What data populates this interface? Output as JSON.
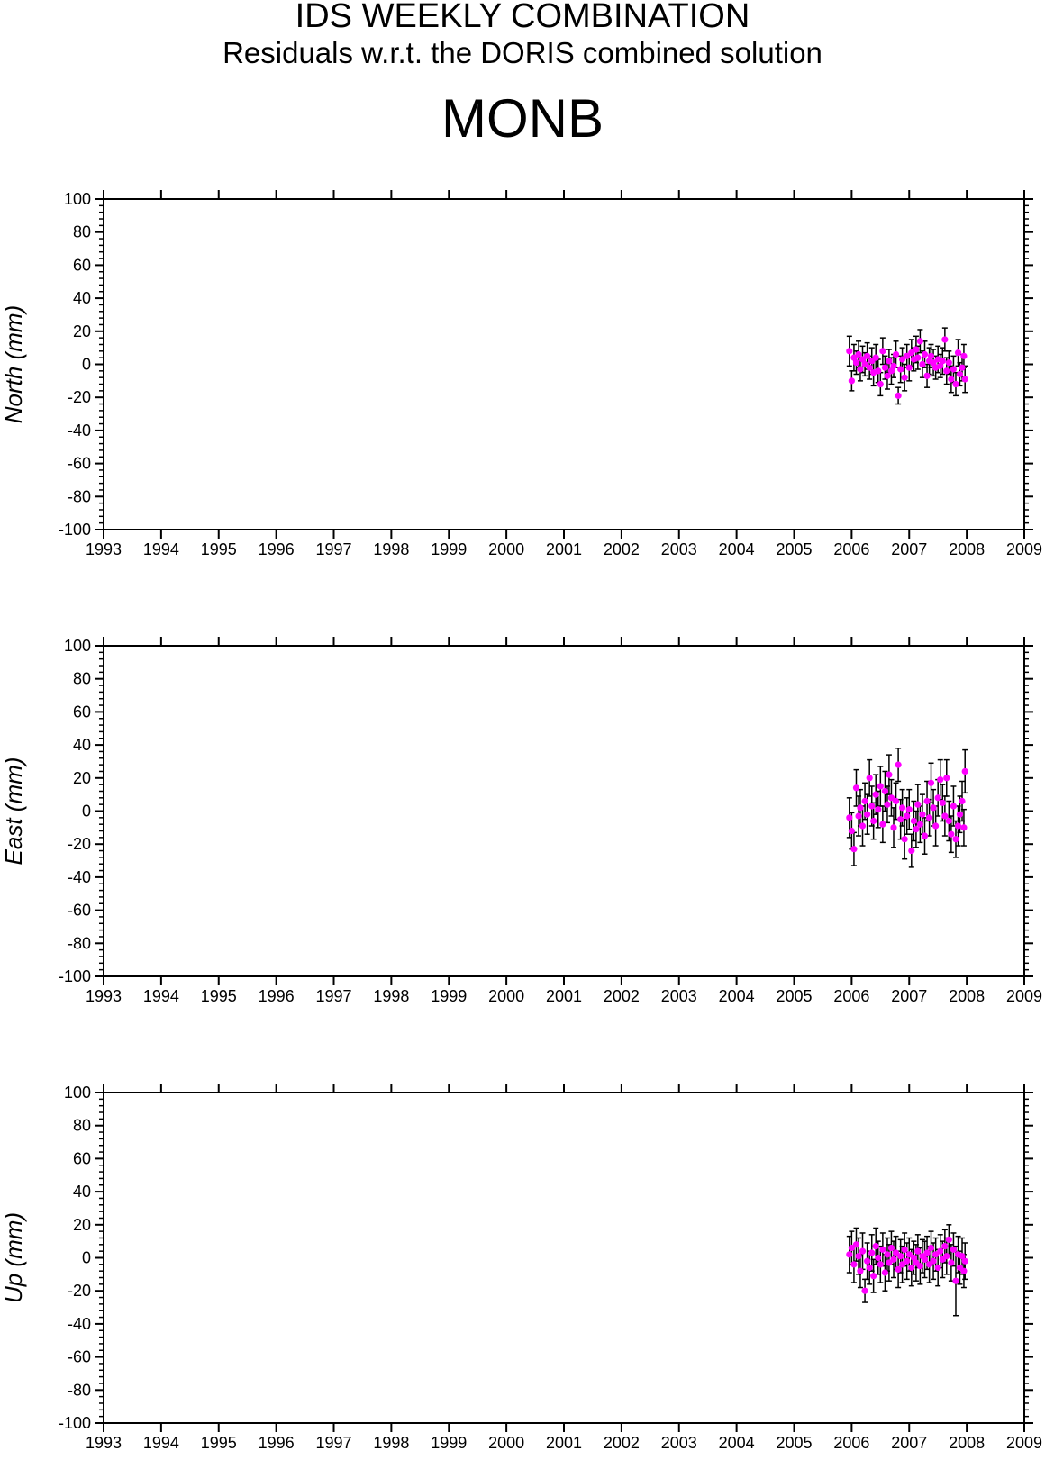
{
  "header": {
    "title": "IDS WEEKLY COMBINATION",
    "subtitle": "Residuals w.r.t. the DORIS combined solution",
    "station": "MONB"
  },
  "colors": {
    "point": "#ff00ff",
    "errorbar": "#000000",
    "axis": "#000000",
    "background": "#ffffff"
  },
  "chart_data": [
    {
      "type": "scatter",
      "component": "north",
      "ylabel": "North (mm)",
      "xlim": [
        1993,
        2009
      ],
      "ylim": [
        -100,
        100
      ],
      "xticks": [
        1993,
        1994,
        1995,
        1996,
        1997,
        1998,
        1999,
        2000,
        2001,
        2002,
        2003,
        2004,
        2005,
        2006,
        2007,
        2008,
        2009
      ],
      "yticks": [
        -100,
        -80,
        -60,
        -40,
        -20,
        0,
        20,
        40,
        60,
        80,
        100
      ],
      "grid": false,
      "error_bars": true,
      "points": [
        {
          "x": 2005.96,
          "y": 8,
          "err": 9
        },
        {
          "x": 2006.0,
          "y": -10,
          "err": 6
        },
        {
          "x": 2006.04,
          "y": 4,
          "err": 8
        },
        {
          "x": 2006.08,
          "y": 1,
          "err": 7
        },
        {
          "x": 2006.12,
          "y": 6,
          "err": 8
        },
        {
          "x": 2006.15,
          "y": -3,
          "err": 7
        },
        {
          "x": 2006.19,
          "y": 3,
          "err": 8
        },
        {
          "x": 2006.23,
          "y": 0,
          "err": 7
        },
        {
          "x": 2006.27,
          "y": 5,
          "err": 8
        },
        {
          "x": 2006.31,
          "y": -2,
          "err": 7
        },
        {
          "x": 2006.35,
          "y": 2,
          "err": 8
        },
        {
          "x": 2006.38,
          "y": -5,
          "err": 8
        },
        {
          "x": 2006.42,
          "y": 4,
          "err": 8
        },
        {
          "x": 2006.46,
          "y": -4,
          "err": 7
        },
        {
          "x": 2006.5,
          "y": -12,
          "err": 7
        },
        {
          "x": 2006.54,
          "y": 8,
          "err": 8
        },
        {
          "x": 2006.58,
          "y": -2,
          "err": 7
        },
        {
          "x": 2006.62,
          "y": -7,
          "err": 8
        },
        {
          "x": 2006.65,
          "y": 2,
          "err": 7
        },
        {
          "x": 2006.69,
          "y": -4,
          "err": 8
        },
        {
          "x": 2006.73,
          "y": -1,
          "err": 7
        },
        {
          "x": 2006.77,
          "y": 6,
          "err": 8
        },
        {
          "x": 2006.81,
          "y": -19,
          "err": 5
        },
        {
          "x": 2006.85,
          "y": -3,
          "err": 8
        },
        {
          "x": 2006.88,
          "y": 3,
          "err": 7
        },
        {
          "x": 2006.92,
          "y": -8,
          "err": 8
        },
        {
          "x": 2006.96,
          "y": 5,
          "err": 7
        },
        {
          "x": 2007.0,
          "y": -2,
          "err": 8
        },
        {
          "x": 2007.04,
          "y": 7,
          "err": 8
        },
        {
          "x": 2007.08,
          "y": 3,
          "err": 7
        },
        {
          "x": 2007.12,
          "y": 9,
          "err": 8
        },
        {
          "x": 2007.15,
          "y": 4,
          "err": 7
        },
        {
          "x": 2007.19,
          "y": 14,
          "err": 7
        },
        {
          "x": 2007.23,
          "y": 0,
          "err": 8
        },
        {
          "x": 2007.27,
          "y": 6,
          "err": 8
        },
        {
          "x": 2007.31,
          "y": -7,
          "err": 7
        },
        {
          "x": 2007.35,
          "y": 2,
          "err": 8
        },
        {
          "x": 2007.38,
          "y": 5,
          "err": 7
        },
        {
          "x": 2007.42,
          "y": 1,
          "err": 8
        },
        {
          "x": 2007.46,
          "y": -2,
          "err": 7
        },
        {
          "x": 2007.5,
          "y": 3,
          "err": 8
        },
        {
          "x": 2007.54,
          "y": -1,
          "err": 7
        },
        {
          "x": 2007.58,
          "y": 2,
          "err": 8
        },
        {
          "x": 2007.62,
          "y": 15,
          "err": 7
        },
        {
          "x": 2007.65,
          "y": -4,
          "err": 8
        },
        {
          "x": 2007.69,
          "y": 1,
          "err": 7
        },
        {
          "x": 2007.73,
          "y": -9,
          "err": 8
        },
        {
          "x": 2007.77,
          "y": -3,
          "err": 8
        },
        {
          "x": 2007.81,
          "y": -12,
          "err": 7
        },
        {
          "x": 2007.85,
          "y": 7,
          "err": 8
        },
        {
          "x": 2007.88,
          "y": -6,
          "err": 7
        },
        {
          "x": 2007.92,
          "y": -2,
          "err": 8
        },
        {
          "x": 2007.95,
          "y": 5,
          "err": 7
        },
        {
          "x": 2007.97,
          "y": -9,
          "err": 8
        }
      ]
    },
    {
      "type": "scatter",
      "component": "east",
      "ylabel": "East (mm)",
      "xlim": [
        1993,
        2009
      ],
      "ylim": [
        -100,
        100
      ],
      "xticks": [
        1993,
        1994,
        1995,
        1996,
        1997,
        1998,
        1999,
        2000,
        2001,
        2002,
        2003,
        2004,
        2005,
        2006,
        2007,
        2008,
        2009
      ],
      "yticks": [
        -100,
        -80,
        -60,
        -40,
        -20,
        0,
        20,
        40,
        60,
        80,
        100
      ],
      "grid": false,
      "error_bars": true,
      "points": [
        {
          "x": 2005.96,
          "y": -4,
          "err": 12
        },
        {
          "x": 2006.0,
          "y": -12,
          "err": 11
        },
        {
          "x": 2006.04,
          "y": -23,
          "err": 10
        },
        {
          "x": 2006.08,
          "y": 14,
          "err": 11
        },
        {
          "x": 2006.12,
          "y": -3,
          "err": 12
        },
        {
          "x": 2006.15,
          "y": 2,
          "err": 11
        },
        {
          "x": 2006.19,
          "y": -9,
          "err": 12
        },
        {
          "x": 2006.23,
          "y": 6,
          "err": 11
        },
        {
          "x": 2006.27,
          "y": -2,
          "err": 12
        },
        {
          "x": 2006.31,
          "y": 20,
          "err": 11
        },
        {
          "x": 2006.35,
          "y": 3,
          "err": 12
        },
        {
          "x": 2006.38,
          "y": -6,
          "err": 11
        },
        {
          "x": 2006.42,
          "y": 10,
          "err": 12
        },
        {
          "x": 2006.46,
          "y": 1,
          "err": 11
        },
        {
          "x": 2006.5,
          "y": 15,
          "err": 12
        },
        {
          "x": 2006.54,
          "y": -8,
          "err": 11
        },
        {
          "x": 2006.58,
          "y": 12,
          "err": 12
        },
        {
          "x": 2006.62,
          "y": 4,
          "err": 11
        },
        {
          "x": 2006.65,
          "y": 22,
          "err": 12
        },
        {
          "x": 2006.69,
          "y": 8,
          "err": 11
        },
        {
          "x": 2006.73,
          "y": -10,
          "err": 12
        },
        {
          "x": 2006.77,
          "y": 6,
          "err": 11
        },
        {
          "x": 2006.81,
          "y": 28,
          "err": 10
        },
        {
          "x": 2006.85,
          "y": -5,
          "err": 12
        },
        {
          "x": 2006.88,
          "y": 2,
          "err": 11
        },
        {
          "x": 2006.92,
          "y": -17,
          "err": 12
        },
        {
          "x": 2006.96,
          "y": -3,
          "err": 11
        },
        {
          "x": 2007.0,
          "y": 1,
          "err": 12
        },
        {
          "x": 2007.04,
          "y": -24,
          "err": 10
        },
        {
          "x": 2007.08,
          "y": -6,
          "err": 12
        },
        {
          "x": 2007.12,
          "y": -11,
          "err": 11
        },
        {
          "x": 2007.15,
          "y": 4,
          "err": 12
        },
        {
          "x": 2007.19,
          "y": -8,
          "err": 11
        },
        {
          "x": 2007.23,
          "y": -2,
          "err": 12
        },
        {
          "x": 2007.27,
          "y": -15,
          "err": 11
        },
        {
          "x": 2007.31,
          "y": 6,
          "err": 12
        },
        {
          "x": 2007.35,
          "y": -4,
          "err": 11
        },
        {
          "x": 2007.38,
          "y": 17,
          "err": 12
        },
        {
          "x": 2007.42,
          "y": 2,
          "err": 11
        },
        {
          "x": 2007.46,
          "y": -9,
          "err": 12
        },
        {
          "x": 2007.5,
          "y": 8,
          "err": 11
        },
        {
          "x": 2007.54,
          "y": 19,
          "err": 12
        },
        {
          "x": 2007.58,
          "y": 5,
          "err": 11
        },
        {
          "x": 2007.62,
          "y": -3,
          "err": 12
        },
        {
          "x": 2007.65,
          "y": 20,
          "err": 11
        },
        {
          "x": 2007.69,
          "y": -6,
          "err": 12
        },
        {
          "x": 2007.73,
          "y": -14,
          "err": 11
        },
        {
          "x": 2007.77,
          "y": 3,
          "err": 12
        },
        {
          "x": 2007.81,
          "y": -17,
          "err": 11
        },
        {
          "x": 2007.85,
          "y": -9,
          "err": 12
        },
        {
          "x": 2007.88,
          "y": -2,
          "err": 11
        },
        {
          "x": 2007.92,
          "y": 6,
          "err": 12
        },
        {
          "x": 2007.95,
          "y": -10,
          "err": 11
        },
        {
          "x": 2007.97,
          "y": 24,
          "err": 13
        }
      ]
    },
    {
      "type": "scatter",
      "component": "up",
      "ylabel": "Up (mm)",
      "xlim": [
        1993,
        2009
      ],
      "ylim": [
        -100,
        100
      ],
      "xticks": [
        1993,
        1994,
        1995,
        1996,
        1997,
        1998,
        1999,
        2000,
        2001,
        2002,
        2003,
        2004,
        2005,
        2006,
        2007,
        2008,
        2009
      ],
      "yticks": [
        -100,
        -80,
        -60,
        -40,
        -20,
        0,
        20,
        40,
        60,
        80,
        100
      ],
      "grid": false,
      "error_bars": true,
      "points": [
        {
          "x": 2005.96,
          "y": 2,
          "err": 11
        },
        {
          "x": 2006.0,
          "y": 6,
          "err": 10
        },
        {
          "x": 2006.04,
          "y": -4,
          "err": 11
        },
        {
          "x": 2006.08,
          "y": 8,
          "err": 10
        },
        {
          "x": 2006.12,
          "y": 1,
          "err": 11
        },
        {
          "x": 2006.15,
          "y": -8,
          "err": 10
        },
        {
          "x": 2006.19,
          "y": 4,
          "err": 11
        },
        {
          "x": 2006.23,
          "y": -20,
          "err": 7
        },
        {
          "x": 2006.27,
          "y": -2,
          "err": 11
        },
        {
          "x": 2006.31,
          "y": -6,
          "err": 10
        },
        {
          "x": 2006.35,
          "y": 3,
          "err": 11
        },
        {
          "x": 2006.38,
          "y": -11,
          "err": 10
        },
        {
          "x": 2006.42,
          "y": 7,
          "err": 11
        },
        {
          "x": 2006.46,
          "y": 0,
          "err": 10
        },
        {
          "x": 2006.5,
          "y": -4,
          "err": 11
        },
        {
          "x": 2006.54,
          "y": 5,
          "err": 10
        },
        {
          "x": 2006.58,
          "y": -9,
          "err": 11
        },
        {
          "x": 2006.62,
          "y": 2,
          "err": 10
        },
        {
          "x": 2006.65,
          "y": -3,
          "err": 11
        },
        {
          "x": 2006.69,
          "y": 6,
          "err": 10
        },
        {
          "x": 2006.73,
          "y": -1,
          "err": 11
        },
        {
          "x": 2006.77,
          "y": 3,
          "err": 10
        },
        {
          "x": 2006.81,
          "y": -7,
          "err": 11
        },
        {
          "x": 2006.85,
          "y": 1,
          "err": 10
        },
        {
          "x": 2006.88,
          "y": -4,
          "err": 11
        },
        {
          "x": 2006.92,
          "y": 5,
          "err": 10
        },
        {
          "x": 2006.96,
          "y": -2,
          "err": 11
        },
        {
          "x": 2007.0,
          "y": 2,
          "err": 10
        },
        {
          "x": 2007.04,
          "y": -6,
          "err": 11
        },
        {
          "x": 2007.08,
          "y": 0,
          "err": 10
        },
        {
          "x": 2007.12,
          "y": -3,
          "err": 11
        },
        {
          "x": 2007.15,
          "y": 4,
          "err": 10
        },
        {
          "x": 2007.19,
          "y": -5,
          "err": 11
        },
        {
          "x": 2007.23,
          "y": 1,
          "err": 10
        },
        {
          "x": 2007.27,
          "y": -1,
          "err": 11
        },
        {
          "x": 2007.31,
          "y": 3,
          "err": 10
        },
        {
          "x": 2007.35,
          "y": -4,
          "err": 11
        },
        {
          "x": 2007.38,
          "y": 6,
          "err": 10
        },
        {
          "x": 2007.42,
          "y": -2,
          "err": 11
        },
        {
          "x": 2007.46,
          "y": 2,
          "err": 10
        },
        {
          "x": 2007.5,
          "y": -6,
          "err": 11
        },
        {
          "x": 2007.54,
          "y": 4,
          "err": 10
        },
        {
          "x": 2007.58,
          "y": -1,
          "err": 11
        },
        {
          "x": 2007.62,
          "y": 7,
          "err": 10
        },
        {
          "x": 2007.65,
          "y": 1,
          "err": 11
        },
        {
          "x": 2007.69,
          "y": 11,
          "err": 9
        },
        {
          "x": 2007.73,
          "y": -3,
          "err": 11
        },
        {
          "x": 2007.77,
          "y": 5,
          "err": 10
        },
        {
          "x": 2007.81,
          "y": -14,
          "err": 21
        },
        {
          "x": 2007.85,
          "y": 2,
          "err": 11
        },
        {
          "x": 2007.88,
          "y": -6,
          "err": 10
        },
        {
          "x": 2007.92,
          "y": 1,
          "err": 11
        },
        {
          "x": 2007.95,
          "y": -8,
          "err": 10
        },
        {
          "x": 2007.97,
          "y": -2,
          "err": 11
        }
      ]
    }
  ]
}
